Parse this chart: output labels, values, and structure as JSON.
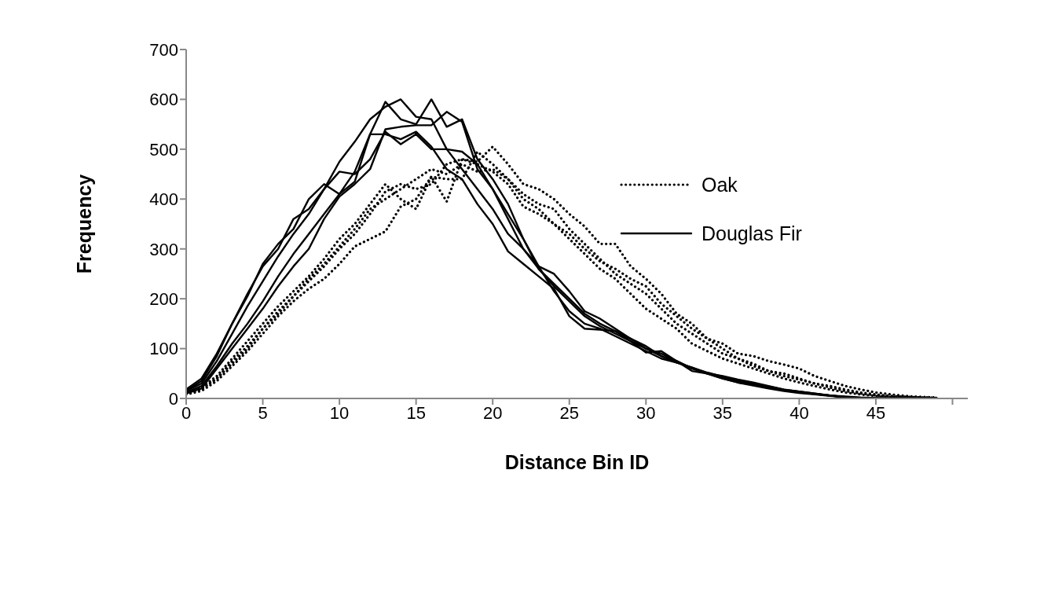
{
  "chart_data": {
    "type": "line",
    "xlabel": "Distance Bin ID",
    "ylabel": "Frequency",
    "x": [
      0,
      1,
      2,
      3,
      4,
      5,
      6,
      7,
      8,
      9,
      10,
      11,
      12,
      13,
      14,
      15,
      16,
      17,
      18,
      19,
      20,
      21,
      22,
      23,
      24,
      25,
      26,
      27,
      28,
      29,
      30,
      31,
      32,
      33,
      34,
      35,
      36,
      37,
      38,
      39,
      40,
      41,
      42,
      43,
      44,
      45,
      46,
      47,
      48,
      49
    ],
    "xlim": [
      0,
      51
    ],
    "xticks": [
      0,
      5,
      10,
      15,
      20,
      25,
      30,
      35,
      40,
      45,
      {
        "value": 50,
        "label": null
      }
    ],
    "ylim": [
      0,
      700
    ],
    "yticks": [
      0,
      100,
      200,
      300,
      400,
      500,
      600,
      700
    ],
    "grid": false,
    "legend": "top right",
    "marker": "none",
    "series": [
      {
        "name": "Oak",
        "color": "#000000",
        "line_style": "dotted",
        "values": [
          10,
          20,
          40,
          70,
          100,
          140,
          170,
          205,
          235,
          265,
          300,
          330,
          370,
          415,
          430,
          420,
          430,
          470,
          480,
          475,
          505,
          470,
          430,
          420,
          400,
          370,
          345,
          310,
          310,
          265,
          240,
          210,
          170,
          150,
          120,
          110,
          90,
          85,
          75,
          68,
          60,
          45,
          35,
          25,
          18,
          12,
          8,
          5,
          3,
          2
        ]
      },
      {
        "color": "#000000",
        "line_style": "dotted",
        "values": [
          8,
          15,
          35,
          65,
          95,
          130,
          165,
          195,
          220,
          240,
          270,
          305,
          320,
          335,
          385,
          400,
          445,
          440,
          440,
          495,
          470,
          440,
          410,
          390,
          380,
          340,
          310,
          280,
          250,
          230,
          210,
          180,
          150,
          130,
          110,
          90,
          80,
          70,
          55,
          50,
          40,
          30,
          25,
          18,
          12,
          8,
          5,
          3,
          2,
          1
        ]
      },
      {
        "color": "#000000",
        "line_style": "dotted",
        "values": [
          12,
          22,
          45,
          80,
          115,
          150,
          185,
          215,
          245,
          280,
          320,
          350,
          390,
          430,
          400,
          380,
          445,
          395,
          480,
          470,
          455,
          430,
          385,
          370,
          350,
          320,
          290,
          260,
          240,
          210,
          180,
          160,
          140,
          110,
          95,
          80,
          70,
          60,
          50,
          40,
          32,
          25,
          18,
          12,
          8,
          5,
          3,
          2,
          1,
          1
        ]
      },
      {
        "color": "#000000",
        "line_style": "dotted",
        "values": [
          10,
          18,
          40,
          75,
          105,
          140,
          175,
          205,
          240,
          270,
          305,
          340,
          380,
          400,
          420,
          440,
          460,
          450,
          470,
          455,
          460,
          440,
          400,
          380,
          350,
          330,
          300,
          275,
          260,
          240,
          225,
          190,
          165,
          140,
          120,
          100,
          80,
          65,
          55,
          45,
          38,
          30,
          22,
          15,
          10,
          6,
          4,
          3,
          2,
          1
        ]
      },
      {
        "name": "Douglas Fir",
        "color": "#000000",
        "line_style": "solid",
        "values": [
          15,
          30,
          75,
          130,
          185,
          235,
          285,
          330,
          370,
          420,
          475,
          515,
          560,
          585,
          600,
          565,
          560,
          500,
          460,
          420,
          380,
          330,
          300,
          260,
          225,
          195,
          165,
          145,
          130,
          115,
          100,
          85,
          75,
          60,
          50,
          42,
          35,
          28,
          22,
          17,
          13,
          9,
          6,
          4,
          2,
          1,
          0,
          0,
          0,
          0
        ]
      },
      {
        "color": "#000000",
        "line_style": "solid",
        "values": [
          12,
          25,
          65,
          110,
          150,
          195,
          245,
          290,
          330,
          370,
          410,
          455,
          530,
          595,
          560,
          550,
          600,
          545,
          560,
          480,
          440,
          390,
          320,
          265,
          215,
          175,
          150,
          140,
          125,
          110,
          95,
          80,
          72,
          62,
          52,
          44,
          36,
          30,
          24,
          18,
          14,
          10,
          6,
          3,
          1,
          0,
          0,
          0,
          0,
          0
        ]
      },
      {
        "color": "#000000",
        "line_style": "solid",
        "values": [
          10,
          20,
          60,
          100,
          140,
          180,
          225,
          265,
          300,
          360,
          405,
          430,
          460,
          540,
          545,
          548,
          548,
          575,
          555,
          460,
          420,
          370,
          320,
          260,
          230,
          200,
          170,
          150,
          135,
          120,
          100,
          90,
          75,
          60,
          50,
          40,
          32,
          26,
          20,
          15,
          11,
          8,
          5,
          3,
          1,
          0,
          0,
          0,
          0,
          0
        ]
      },
      {
        "color": "#000000",
        "line_style": "solid",
        "values": [
          18,
          40,
          90,
          150,
          210,
          265,
          300,
          360,
          380,
          420,
          455,
          450,
          480,
          535,
          510,
          530,
          500,
          500,
          495,
          470,
          420,
          360,
          300,
          265,
          250,
          215,
          175,
          160,
          140,
          120,
          105,
          85,
          72,
          62,
          50,
          40,
          32,
          28,
          22,
          16,
          12,
          9,
          6,
          3,
          1,
          0,
          0,
          0,
          0,
          0
        ]
      },
      {
        "color": "#000000",
        "line_style": "solid",
        "values": [
          15,
          35,
          85,
          150,
          205,
          270,
          310,
          340,
          400,
          430,
          410,
          435,
          530,
          530,
          520,
          535,
          505,
          460,
          440,
          390,
          350,
          295,
          270,
          245,
          220,
          165,
          140,
          138,
          135,
          115,
          92,
          95,
          75,
          55,
          50,
          45,
          38,
          32,
          25,
          18,
          14,
          10,
          6,
          2,
          0,
          0,
          0,
          0,
          0,
          0
        ]
      }
    ]
  }
}
